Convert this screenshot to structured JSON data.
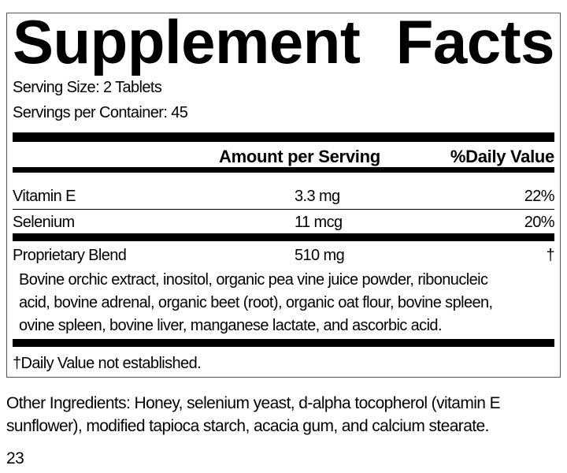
{
  "title": [
    "Supplement",
    "Facts"
  ],
  "serving_size": "Serving Size: 2 Tablets",
  "servings_per_container": "Servings per Container: 45",
  "header": {
    "amount": "Amount per Serving",
    "daily_value": "%Daily Value"
  },
  "rows": [
    {
      "name": "Vitamin E",
      "amount": "3.3 mg",
      "dv": "22%"
    },
    {
      "name": "Selenium",
      "amount": "11 mcg",
      "dv": "20%"
    },
    {
      "name": "Proprietary Blend",
      "amount": "510 mg",
      "dv": "†"
    }
  ],
  "blend_ingredients": [
    "Bovine orchic extract, inositol, organic pea vine juice powder, ribonucleic",
    "acid, bovine adrenal, organic beet (root), organic oat flour, bovine spleen,",
    "ovine spleen, bovine liver, manganese lactate, and ascorbic acid."
  ],
  "footnote": "†Daily Value not established.",
  "other_ingredients": [
    "Other Ingredients: Honey, selenium yeast, d-alpha tocopherol (vitamin E",
    "sunflower), modified tapioca starch, acacia gum, and calcium stearate."
  ],
  "page_number": "23"
}
